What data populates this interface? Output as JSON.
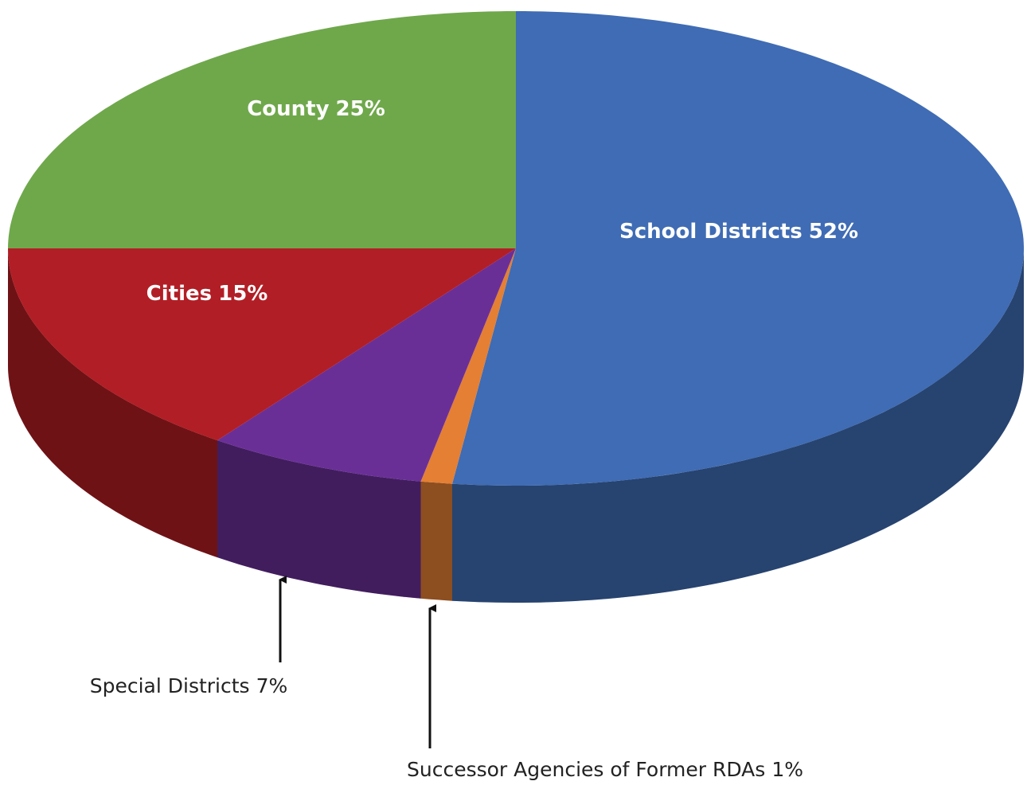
{
  "chart_data": {
    "type": "pie",
    "categories": [
      "School Districts",
      "Successor Agencies of Former RDAs",
      "Special Districts",
      "Cities",
      "County"
    ],
    "values": [
      52,
      1,
      7,
      15,
      25
    ],
    "value_labels": [
      "52%",
      "1%",
      "7%",
      "15%",
      "25%"
    ],
    "colors": [
      "#3f6cb4",
      "#e47f34",
      "#6a2f97",
      "#b21e25",
      "#6fa84b"
    ]
  }
}
